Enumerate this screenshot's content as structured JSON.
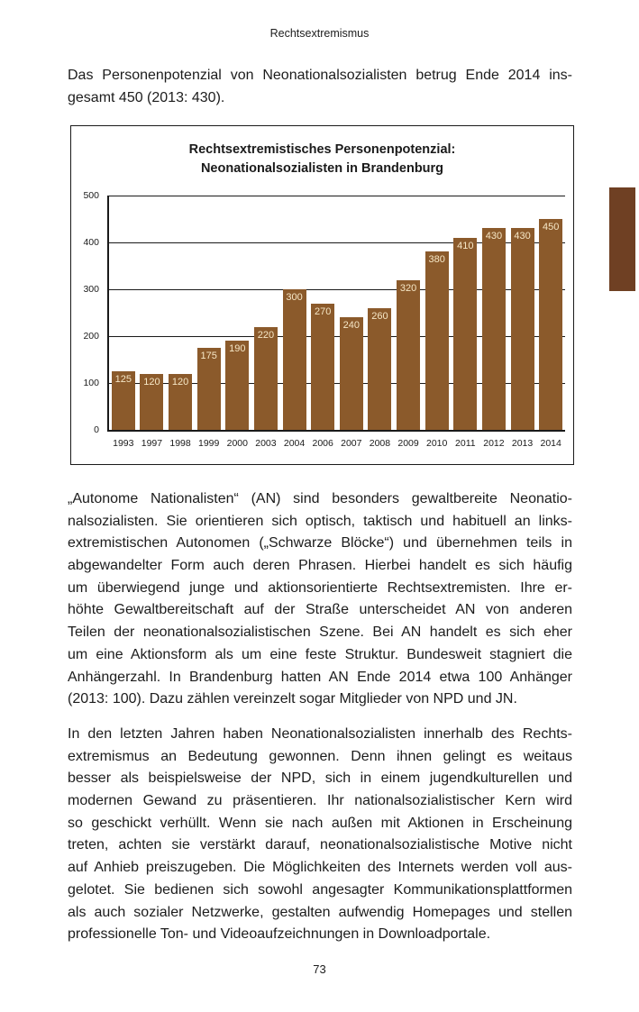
{
  "page": {
    "running_header": "Rechtsextremismus",
    "page_number": "73",
    "text_color": "#1c1c1c",
    "side_tab_color": "#6f4023",
    "intro": {
      "lines": [
        "Das Personenpotenzial von Neonationalsozialisten betrug Ende 2014 ins-",
        "gesamt 450 (2013: 430)."
      ]
    },
    "paragraphs": [
      {
        "lines": [
          "„Autonome Nationalisten“ (AN) sind besonders gewaltbereite Neonatio-",
          "nalsozialisten. Sie orientieren sich optisch, taktisch und habituell an links-",
          "extremistischen Autonomen („Schwarze Blöcke“) und übernehmen teils in",
          "abgewandelter Form auch deren Phrasen. Hierbei handelt es sich häufig",
          "um überwiegend junge und aktionsorientierte Rechtsextremisten. Ihre er-",
          "höhte Gewaltbereitschaft auf der Straße unterscheidet AN von anderen",
          "Teilen der neonationalsozialistischen Szene. Bei AN handelt es sich eher",
          "um eine Aktionsform als um eine feste Struktur. Bundesweit stagniert die",
          "Anhängerzahl. In Brandenburg hatten AN Ende 2014 etwa 100 Anhänger",
          "(2013: 100). Dazu zählen vereinzelt sogar Mitglieder von NPD und JN."
        ]
      },
      {
        "lines": [
          "In den letzten Jahren haben Neonationalsozialisten innerhalb des Rechts-",
          "extremismus an Bedeutung gewonnen. Denn ihnen gelingt es weitaus",
          "besser als beispielsweise der NPD, sich in einem jugendkulturellen und",
          "modernen Gewand zu präsentieren. Ihr nationalsozialistischer Kern wird",
          "so geschickt verhüllt. Wenn sie nach außen mit Aktionen in Erscheinung",
          "treten, achten sie verstärkt darauf, neonationalsozialistische Motive nicht",
          "auf Anhieb preiszugeben. Die Möglichkeiten des Internets werden voll aus-",
          "gelotet. Sie bedienen sich sowohl angesagter Kommunikationsplattformen",
          "als auch sozialer Netzwerke, gestalten aufwendig Homepages und stellen",
          "professionelle Ton- und Videoaufzeichnungen in Downloadportale."
        ]
      }
    ]
  },
  "chart_data": {
    "type": "bar",
    "title": "Rechtsextremistisches Personenpotenzial: Neonationalsozialisten in Brandenburg",
    "title_lines": [
      "Rechtsextremistisches Personenpotenzial:",
      "Neonationalsozialisten in Brandenburg"
    ],
    "categories": [
      "1993",
      "1997",
      "1998",
      "1999",
      "2000",
      "2003",
      "2004",
      "2006",
      "2007",
      "2008",
      "2009",
      "2010",
      "2011",
      "2012",
      "2013",
      "2014"
    ],
    "values": [
      125,
      120,
      120,
      175,
      190,
      220,
      300,
      270,
      240,
      260,
      320,
      380,
      410,
      430,
      430,
      450
    ],
    "xlabel": "",
    "ylabel": "",
    "ylim": [
      0,
      500
    ],
    "yticks": [
      0,
      100,
      200,
      300,
      400,
      500
    ],
    "grid": true,
    "legend": "none",
    "bar_color": "#8b5a2b",
    "bar_label_color": "#f6e7c6"
  }
}
